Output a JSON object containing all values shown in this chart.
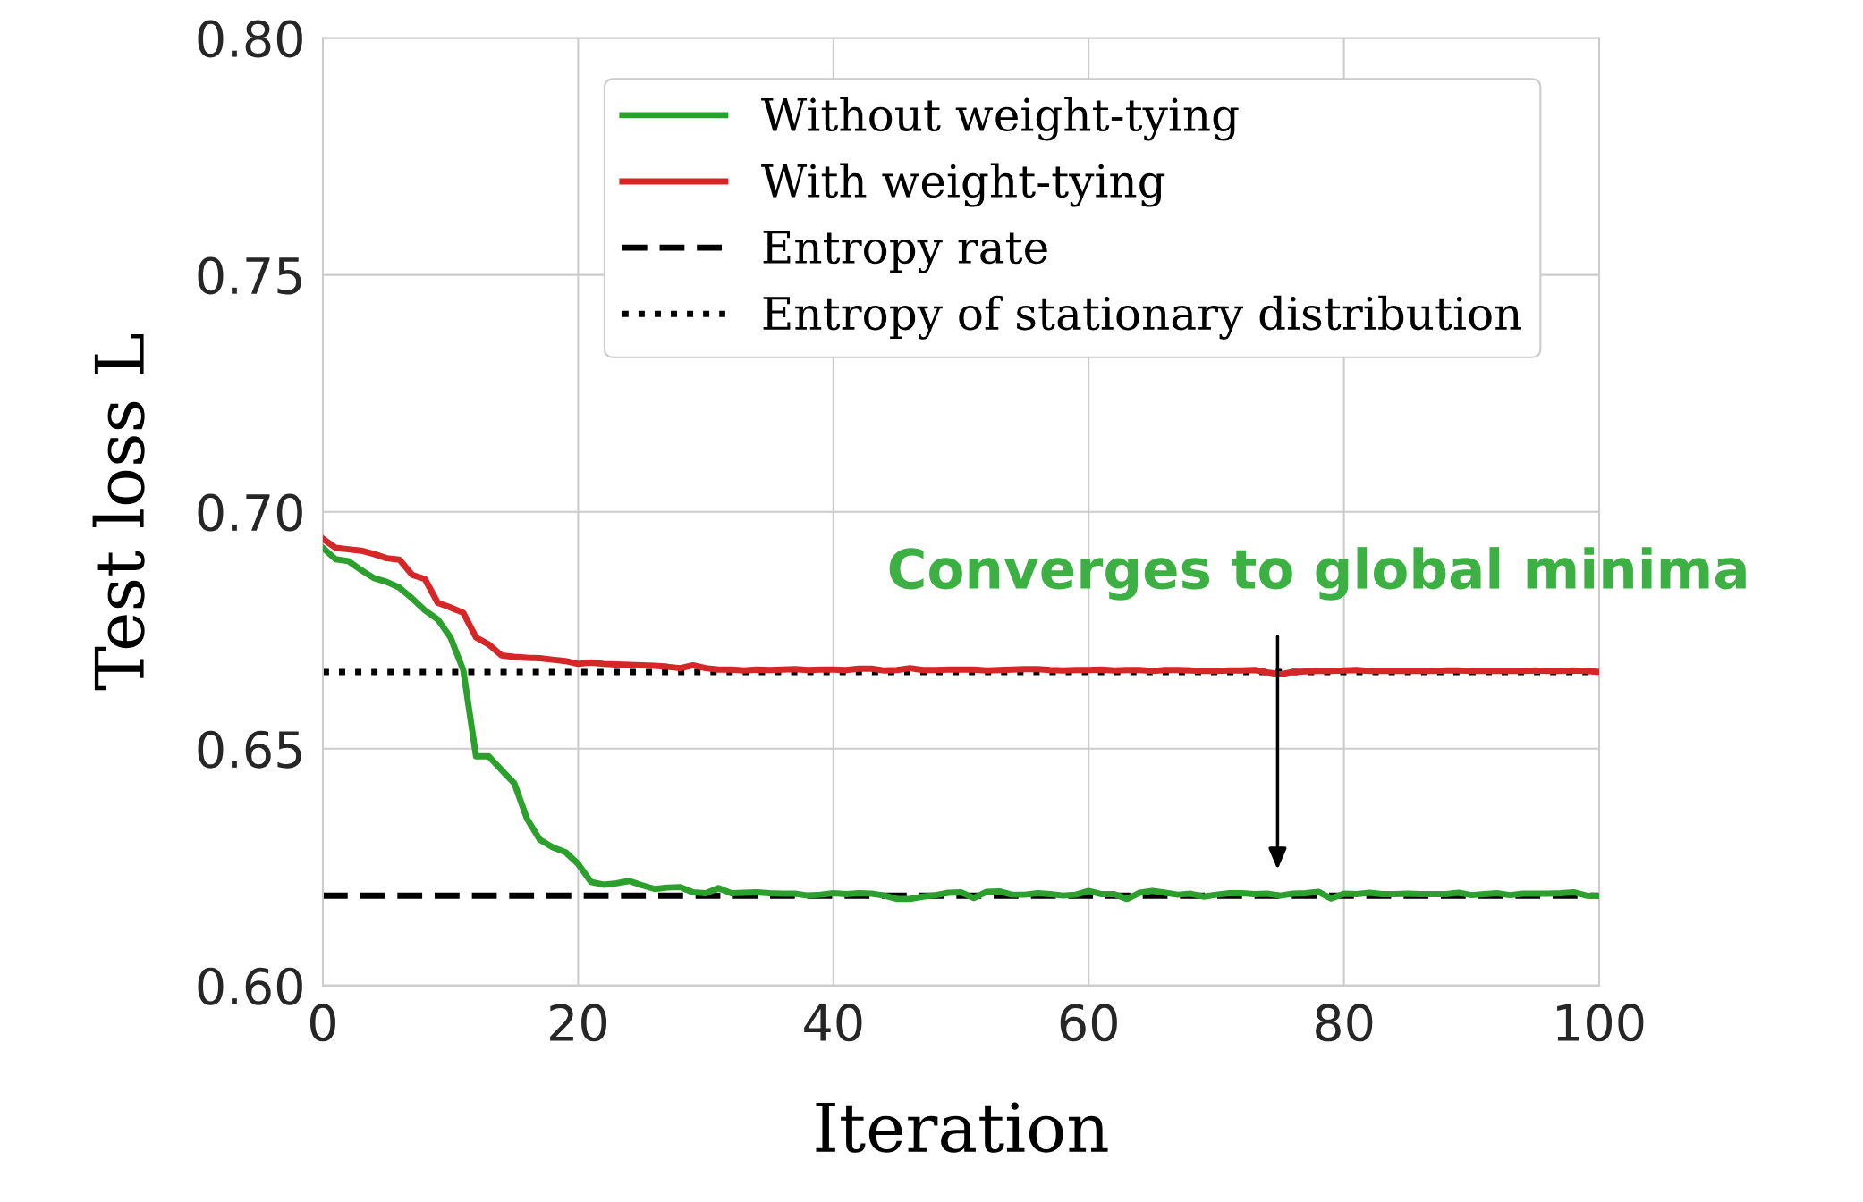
{
  "chart_data": {
    "type": "line",
    "xlabel": "Iteration",
    "ylabel": "Test loss L",
    "xlim": [
      0,
      100
    ],
    "xticks": [
      0,
      20,
      40,
      60,
      80,
      100
    ],
    "ylim": [
      0.6,
      0.8
    ],
    "yticks": [
      {
        "value": 0.6,
        "label": "0.60"
      },
      {
        "value": 0.65,
        "label": "0.65"
      },
      {
        "value": 0.7,
        "label": "0.70"
      },
      {
        "value": 0.75,
        "label": "0.75"
      },
      {
        "value": 0.8,
        "label": "0.80"
      }
    ],
    "grid": true,
    "legend": "top right",
    "line_style": "solid",
    "marker": "none",
    "x": [
      0,
      1,
      2,
      3,
      4,
      5,
      6,
      7,
      8,
      9,
      10,
      11,
      12,
      13,
      14,
      15,
      16,
      17,
      18,
      19,
      20,
      21,
      22,
      23,
      24,
      25,
      26,
      27,
      28,
      29,
      30,
      31,
      32,
      33,
      34,
      35,
      36,
      37,
      38,
      39,
      40,
      41,
      42,
      43,
      44,
      45,
      46,
      47,
      48,
      49,
      50,
      51,
      52,
      53,
      54,
      55,
      56,
      57,
      58,
      59,
      60,
      61,
      62,
      63,
      64,
      65,
      66,
      67,
      68,
      69,
      70,
      71,
      72,
      73,
      74,
      75,
      76,
      77,
      78,
      79,
      80,
      81,
      82,
      83,
      84,
      85,
      86,
      87,
      88,
      89,
      90,
      91,
      92,
      93,
      94,
      95,
      96,
      97,
      98,
      99,
      100
    ],
    "series": [
      {
        "name": "Without weight-tying",
        "color": "#2ca02c",
        "values": [
          0.6924,
          0.69,
          0.6896,
          0.6877,
          0.686,
          0.6852,
          0.684,
          0.6817,
          0.6792,
          0.6773,
          0.6735,
          0.6666,
          0.6484,
          0.6484,
          0.6455,
          0.6427,
          0.6352,
          0.6308,
          0.6292,
          0.6282,
          0.6257,
          0.6219,
          0.6213,
          0.6216,
          0.6221,
          0.6212,
          0.6204,
          0.6207,
          0.6208,
          0.6197,
          0.6195,
          0.6206,
          0.6195,
          0.6196,
          0.6197,
          0.6195,
          0.6194,
          0.6194,
          0.619,
          0.6192,
          0.6195,
          0.6193,
          0.6195,
          0.6194,
          0.619,
          0.6183,
          0.6183,
          0.6188,
          0.6191,
          0.6196,
          0.6197,
          0.6185,
          0.6198,
          0.6199,
          0.6192,
          0.6192,
          0.6195,
          0.6193,
          0.619,
          0.6192,
          0.62,
          0.6193,
          0.6193,
          0.6183,
          0.6196,
          0.62,
          0.6196,
          0.6192,
          0.6194,
          0.6188,
          0.6192,
          0.6195,
          0.6195,
          0.6193,
          0.6194,
          0.619,
          0.6194,
          0.6195,
          0.6198,
          0.6184,
          0.6194,
          0.6193,
          0.6196,
          0.6193,
          0.6193,
          0.6194,
          0.6193,
          0.6193,
          0.6193,
          0.6196,
          0.6191,
          0.6193,
          0.6195,
          0.6191,
          0.6194,
          0.6194,
          0.6194,
          0.6195,
          0.6197,
          0.619,
          0.6189
        ]
      },
      {
        "name": "With weight-tying",
        "color": "#d62728",
        "values": [
          0.6943,
          0.6924,
          0.6921,
          0.6918,
          0.6911,
          0.6902,
          0.6899,
          0.6867,
          0.6858,
          0.6808,
          0.6798,
          0.6787,
          0.6735,
          0.672,
          0.6697,
          0.6694,
          0.6692,
          0.6691,
          0.6688,
          0.6685,
          0.6679,
          0.6682,
          0.6679,
          0.6678,
          0.6677,
          0.6676,
          0.6675,
          0.6673,
          0.667,
          0.6676,
          0.667,
          0.6667,
          0.6667,
          0.6665,
          0.6667,
          0.6666,
          0.6667,
          0.6668,
          0.6666,
          0.6667,
          0.6667,
          0.6666,
          0.6669,
          0.6669,
          0.6665,
          0.6666,
          0.667,
          0.6666,
          0.6666,
          0.6667,
          0.6667,
          0.6667,
          0.6665,
          0.6666,
          0.6667,
          0.6668,
          0.6668,
          0.6666,
          0.6665,
          0.6666,
          0.6666,
          0.6667,
          0.6665,
          0.6666,
          0.6666,
          0.6664,
          0.6666,
          0.6666,
          0.6665,
          0.6664,
          0.6664,
          0.6665,
          0.6665,
          0.6666,
          0.6661,
          0.6657,
          0.6662,
          0.6663,
          0.6664,
          0.6664,
          0.6665,
          0.6666,
          0.6664,
          0.6664,
          0.6664,
          0.6664,
          0.6664,
          0.6664,
          0.6665,
          0.6665,
          0.6664,
          0.6664,
          0.6664,
          0.6664,
          0.6664,
          0.6665,
          0.6664,
          0.6664,
          0.6665,
          0.6664,
          0.6662
        ]
      }
    ],
    "ref_lines": [
      {
        "axis": "y",
        "value": 0.619,
        "label": "Entropy rate",
        "color": "#000000",
        "line_style": "dashed"
      },
      {
        "axis": "y",
        "value": 0.6662,
        "label": "Entropy of stationary distribution",
        "color": "#000000",
        "line_style": "dotted"
      }
    ],
    "annotations": [
      "Converges to global minima"
    ]
  }
}
